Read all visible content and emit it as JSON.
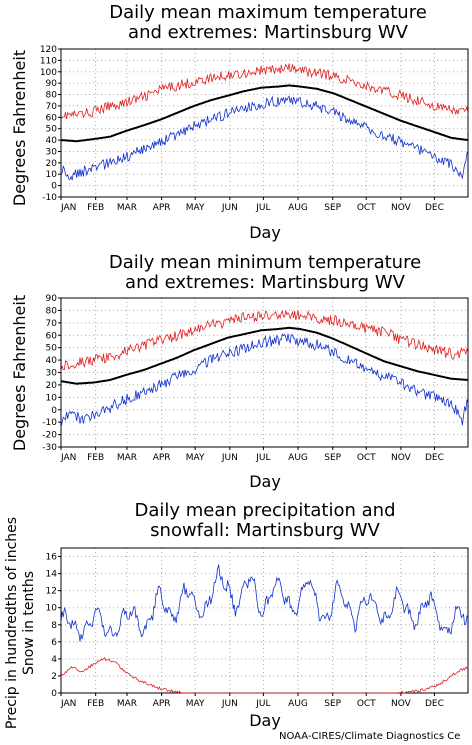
{
  "months": [
    "JAN",
    "FEB",
    "MAR",
    "APR",
    "MAY",
    "JUN",
    "JUL",
    "AUG",
    "SEP",
    "OCT",
    "NOV",
    "DEC"
  ],
  "xlabel": "Day",
  "credit": "NOAA-CIRES/Climate Diagnostics Ce",
  "colors": {
    "max_extreme": "#e02020",
    "mean": "#000000",
    "min_extreme": "#1030d0",
    "grid": "#aaaaaa"
  },
  "chart_data": [
    {
      "type": "line",
      "title": [
        "Daily mean maximum temperature",
        "and extremes: Martinsburg WV"
      ],
      "ylabel": "Degrees Fahrenheit",
      "ylim": [
        -10,
        120
      ],
      "yticks": [
        -10,
        0,
        10,
        20,
        30,
        40,
        50,
        60,
        70,
        80,
        90,
        100,
        110,
        120
      ],
      "xlim": [
        1,
        365
      ],
      "series": [
        {
          "key": "extreme_max",
          "color": "#e02020",
          "points": [
            [
              1,
              62
            ],
            [
              15,
              62
            ],
            [
              31,
              65
            ],
            [
              45,
              70
            ],
            [
              59,
              73
            ],
            [
              75,
              78
            ],
            [
              90,
              84
            ],
            [
              105,
              88
            ],
            [
              120,
              91
            ],
            [
              135,
              94
            ],
            [
              150,
              97
            ],
            [
              165,
              99
            ],
            [
              180,
              101
            ],
            [
              195,
              102
            ],
            [
              205,
              103
            ],
            [
              215,
              101
            ],
            [
              230,
              99
            ],
            [
              245,
              96
            ],
            [
              260,
              92
            ],
            [
              275,
              87
            ],
            [
              290,
              83
            ],
            [
              305,
              79
            ],
            [
              320,
              75
            ],
            [
              335,
              70
            ],
            [
              350,
              66
            ],
            [
              365,
              65
            ]
          ]
        },
        {
          "key": "mean",
          "color": "#000000",
          "points": [
            [
              1,
              40
            ],
            [
              15,
              39
            ],
            [
              31,
              41
            ],
            [
              45,
              43
            ],
            [
              59,
              48
            ],
            [
              75,
              53
            ],
            [
              90,
              58
            ],
            [
              105,
              64
            ],
            [
              120,
              70
            ],
            [
              135,
              75
            ],
            [
              150,
              79
            ],
            [
              165,
              83
            ],
            [
              180,
              86
            ],
            [
              195,
              87
            ],
            [
              205,
              88
            ],
            [
              215,
              87
            ],
            [
              230,
              85
            ],
            [
              245,
              81
            ],
            [
              260,
              75
            ],
            [
              275,
              69
            ],
            [
              290,
              63
            ],
            [
              305,
              57
            ],
            [
              320,
              52
            ],
            [
              335,
              47
            ],
            [
              350,
              42
            ],
            [
              365,
              40
            ]
          ]
        },
        {
          "key": "extreme_min",
          "color": "#1030d0",
          "points": [
            [
              1,
              15
            ],
            [
              10,
              8
            ],
            [
              20,
              12
            ],
            [
              31,
              16
            ],
            [
              45,
              20
            ],
            [
              59,
              25
            ],
            [
              75,
              32
            ],
            [
              90,
              38
            ],
            [
              105,
              45
            ],
            [
              120,
              52
            ],
            [
              135,
              58
            ],
            [
              150,
              63
            ],
            [
              165,
              68
            ],
            [
              180,
              72
            ],
            [
              195,
              74
            ],
            [
              205,
              75
            ],
            [
              215,
              73
            ],
            [
              230,
              70
            ],
            [
              245,
              64
            ],
            [
              260,
              57
            ],
            [
              275,
              50
            ],
            [
              290,
              44
            ],
            [
              305,
              38
            ],
            [
              320,
              32
            ],
            [
              335,
              26
            ],
            [
              350,
              18
            ],
            [
              360,
              10
            ],
            [
              365,
              28
            ]
          ]
        }
      ]
    },
    {
      "type": "line",
      "title": [
        "Daily mean minimum temperature",
        "and extremes: Martinsburg WV"
      ],
      "ylabel": "Degrees Fahrenheit",
      "ylim": [
        -30,
        90
      ],
      "yticks": [
        -30,
        -20,
        -10,
        0,
        10,
        20,
        30,
        40,
        50,
        60,
        70,
        80,
        90
      ],
      "xlim": [
        1,
        365
      ],
      "series": [
        {
          "key": "extreme_max",
          "color": "#e02020",
          "points": [
            [
              1,
              35
            ],
            [
              15,
              38
            ],
            [
              31,
              40
            ],
            [
              45,
              42
            ],
            [
              59,
              47
            ],
            [
              75,
              52
            ],
            [
              90,
              56
            ],
            [
              105,
              60
            ],
            [
              120,
              64
            ],
            [
              135,
              68
            ],
            [
              150,
              71
            ],
            [
              165,
              74
            ],
            [
              180,
              75
            ],
            [
              195,
              76
            ],
            [
              205,
              77
            ],
            [
              215,
              76
            ],
            [
              230,
              74
            ],
            [
              245,
              72
            ],
            [
              260,
              69
            ],
            [
              275,
              66
            ],
            [
              290,
              62
            ],
            [
              305,
              57
            ],
            [
              320,
              52
            ],
            [
              335,
              48
            ],
            [
              350,
              45
            ],
            [
              365,
              46
            ]
          ]
        },
        {
          "key": "mean",
          "color": "#000000",
          "points": [
            [
              1,
              23
            ],
            [
              15,
              21
            ],
            [
              31,
              22
            ],
            [
              45,
              24
            ],
            [
              59,
              28
            ],
            [
              75,
              32
            ],
            [
              90,
              37
            ],
            [
              105,
              42
            ],
            [
              120,
              48
            ],
            [
              135,
              53
            ],
            [
              150,
              58
            ],
            [
              165,
              61
            ],
            [
              180,
              64
            ],
            [
              195,
              65
            ],
            [
              205,
              66
            ],
            [
              215,
              65
            ],
            [
              230,
              62
            ],
            [
              245,
              57
            ],
            [
              260,
              51
            ],
            [
              275,
              45
            ],
            [
              290,
              39
            ],
            [
              305,
              35
            ],
            [
              320,
              31
            ],
            [
              335,
              28
            ],
            [
              350,
              25
            ],
            [
              365,
              24
            ]
          ]
        },
        {
          "key": "extreme_min",
          "color": "#1030d0",
          "points": [
            [
              1,
              -10
            ],
            [
              10,
              -2
            ],
            [
              20,
              -8
            ],
            [
              31,
              -4
            ],
            [
              45,
              2
            ],
            [
              59,
              8
            ],
            [
              75,
              14
            ],
            [
              90,
              20
            ],
            [
              105,
              27
            ],
            [
              120,
              33
            ],
            [
              135,
              40
            ],
            [
              150,
              45
            ],
            [
              165,
              50
            ],
            [
              180,
              54
            ],
            [
              195,
              56
            ],
            [
              205,
              57
            ],
            [
              215,
              55
            ],
            [
              230,
              52
            ],
            [
              245,
              46
            ],
            [
              260,
              40
            ],
            [
              275,
              33
            ],
            [
              290,
              27
            ],
            [
              305,
              21
            ],
            [
              320,
              15
            ],
            [
              335,
              10
            ],
            [
              350,
              5
            ],
            [
              360,
              -8
            ],
            [
              365,
              8
            ]
          ]
        }
      ]
    },
    {
      "type": "line",
      "title": [
        "Daily mean precipitation and",
        "snowfall: Martinsburg WV"
      ],
      "ylabel": [
        "Precip in hundredths of inches",
        "Snow in tenths"
      ],
      "ylim": [
        0,
        17
      ],
      "yticks": [
        0,
        2,
        4,
        6,
        8,
        10,
        12,
        14,
        16
      ],
      "xlim": [
        1,
        365
      ],
      "series": [
        {
          "key": "precip",
          "color": "#1030d0",
          "points": [
            [
              1,
              8
            ],
            [
              10,
              7
            ],
            [
              20,
              9
            ],
            [
              31,
              8
            ],
            [
              40,
              7.5
            ],
            [
              50,
              8.5
            ],
            [
              59,
              8
            ],
            [
              70,
              9
            ],
            [
              80,
              8.5
            ],
            [
              90,
              10
            ],
            [
              100,
              10.5
            ],
            [
              110,
              11
            ],
            [
              120,
              10
            ],
            [
              130,
              11
            ],
            [
              140,
              12
            ],
            [
              150,
              13
            ],
            [
              160,
              11
            ],
            [
              170,
              12
            ],
            [
              180,
              11
            ],
            [
              190,
              12
            ],
            [
              200,
              11
            ],
            [
              210,
              11
            ],
            [
              220,
              12
            ],
            [
              230,
              10.5
            ],
            [
              240,
              10
            ],
            [
              250,
              11
            ],
            [
              260,
              10
            ],
            [
              270,
              10
            ],
            [
              280,
              9.5
            ],
            [
              290,
              10
            ],
            [
              300,
              10
            ],
            [
              310,
              9.5
            ],
            [
              320,
              10
            ],
            [
              330,
              9.5
            ],
            [
              340,
              9
            ],
            [
              350,
              8.5
            ],
            [
              365,
              8
            ]
          ]
        },
        {
          "key": "snow",
          "color": "#e02020",
          "points": [
            [
              1,
              2
            ],
            [
              10,
              3
            ],
            [
              20,
              2.5
            ],
            [
              31,
              3.5
            ],
            [
              40,
              4
            ],
            [
              50,
              3.5
            ],
            [
              59,
              2.5
            ],
            [
              70,
              1.5
            ],
            [
              80,
              1
            ],
            [
              90,
              0.5
            ],
            [
              100,
              0.2
            ],
            [
              110,
              0
            ],
            [
              200,
              0
            ],
            [
              300,
              0
            ],
            [
              320,
              0.2
            ],
            [
              335,
              0.8
            ],
            [
              345,
              1.5
            ],
            [
              355,
              2.5
            ],
            [
              365,
              3
            ]
          ]
        }
      ]
    }
  ]
}
